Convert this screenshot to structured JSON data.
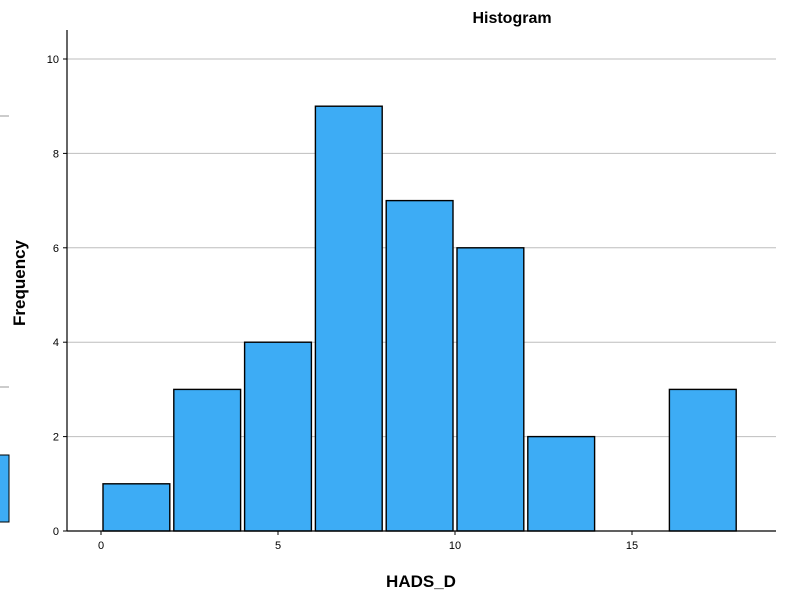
{
  "chart_data": {
    "type": "bar",
    "title": "Histogram",
    "xlabel": "HADS_D",
    "ylabel": "Frequency",
    "bin_width": 2,
    "bins": [
      {
        "start": 0,
        "end": 2,
        "count": 1
      },
      {
        "start": 2,
        "end": 4,
        "count": 3
      },
      {
        "start": 4,
        "end": 6,
        "count": 4
      },
      {
        "start": 6,
        "end": 8,
        "count": 9
      },
      {
        "start": 8,
        "end": 10,
        "count": 7
      },
      {
        "start": 10,
        "end": 12,
        "count": 6
      },
      {
        "start": 12,
        "end": 14,
        "count": 2
      },
      {
        "start": 14,
        "end": 16,
        "count": 0
      },
      {
        "start": 16,
        "end": 18,
        "count": 3
      }
    ],
    "xticks": [
      "0",
      "5",
      "10",
      "15"
    ],
    "yticks": [
      "0",
      "2",
      "4",
      "6",
      "8",
      "10"
    ],
    "xlim": [
      -1,
      19
    ],
    "ylim": [
      0,
      10
    ],
    "grid": "horizontal",
    "colors": {
      "bar": "#3DACF5",
      "bar_edge": "#000000",
      "grid": "#BEBEBE",
      "axis": "#000000"
    }
  }
}
